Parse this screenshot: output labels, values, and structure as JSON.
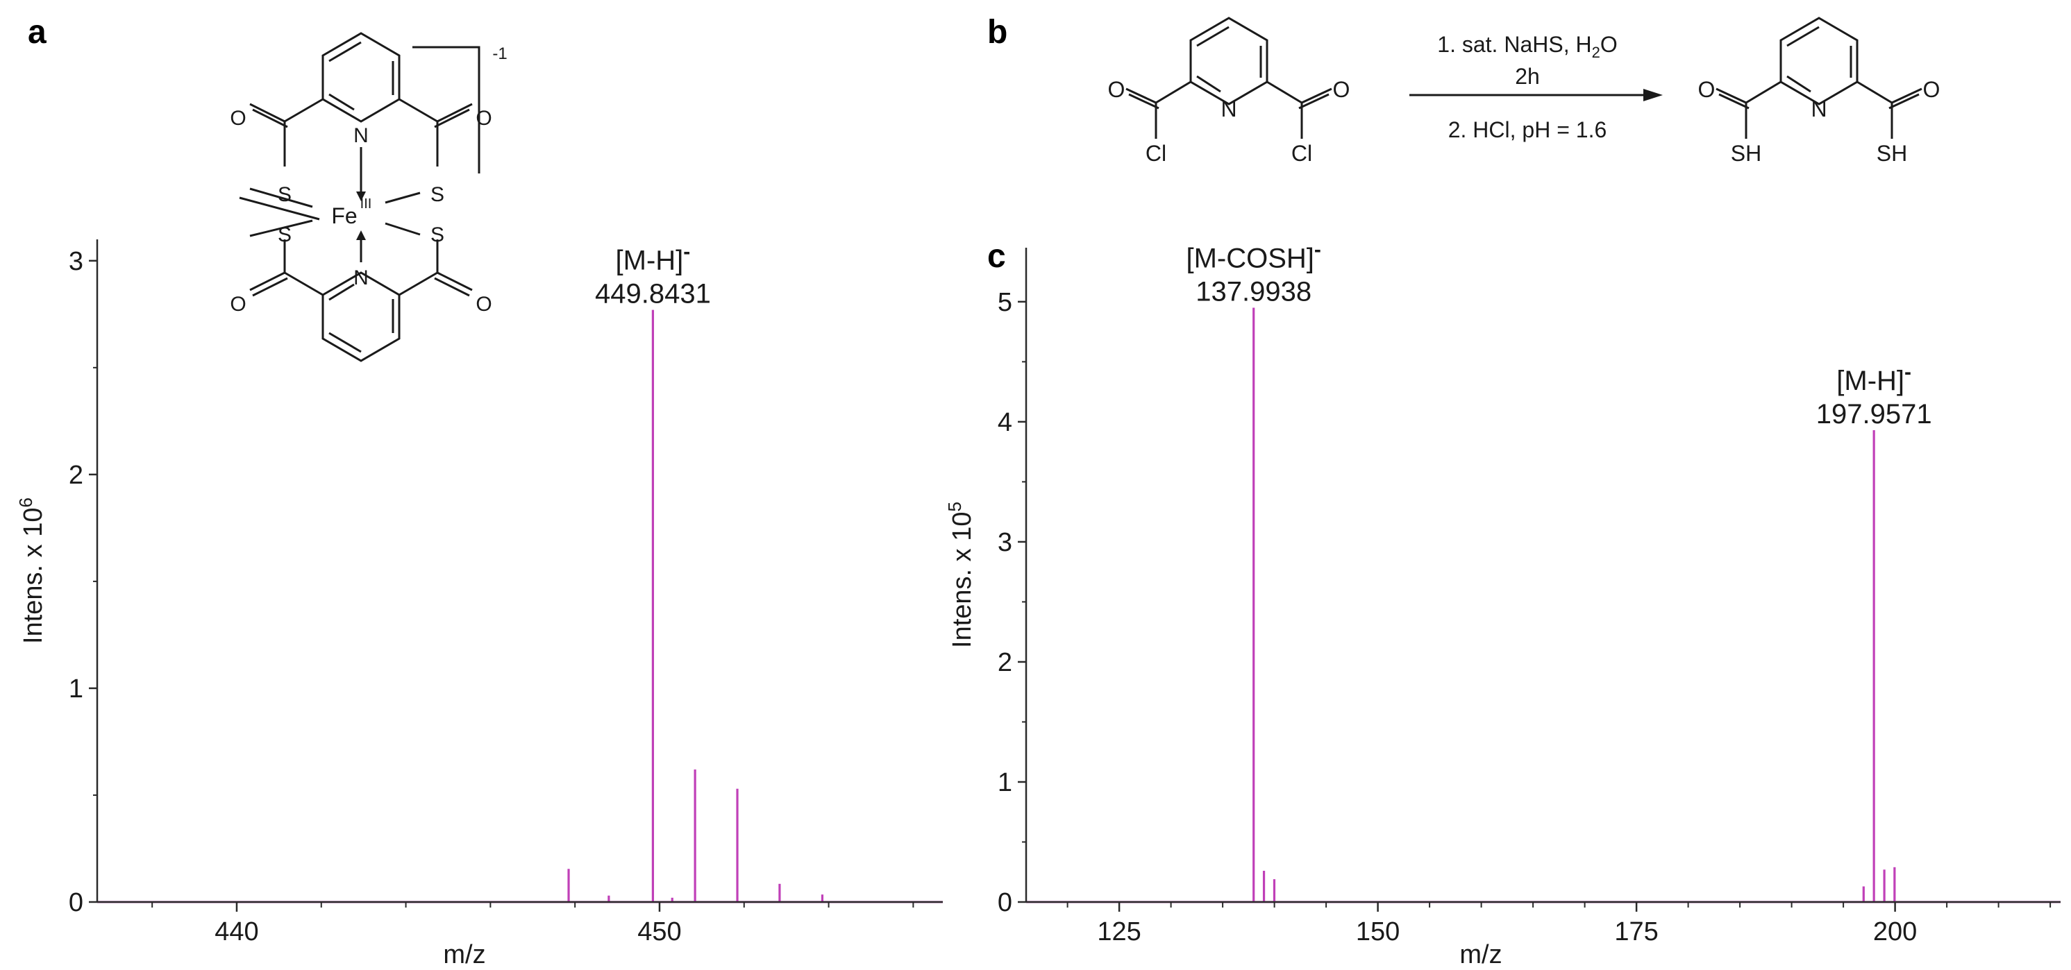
{
  "panel_labels": {
    "a": "a",
    "b": "b",
    "c": "c"
  },
  "colors": {
    "spectrum": "#c040b8",
    "axis": "#2a2a2a",
    "text": "#1a1a1a"
  },
  "structure_a": {
    "charge": "-1",
    "metal": "Fe",
    "oxidation_state": "III",
    "atom_N": "N",
    "atom_S": "S",
    "atom_O": "O"
  },
  "reaction_b": {
    "step1": "1. sat. NaHS, H",
    "step1_sub": "2",
    "step1_end": "O",
    "step1_time": "2h",
    "step2": "2. HCl, pH = 1.6",
    "reactant_groups": [
      "Cl",
      "Cl"
    ],
    "product_groups": [
      "SH",
      "SH"
    ],
    "atom_N": "N",
    "atom_O": "O"
  },
  "chart_data": [
    {
      "panel": "a",
      "type": "line",
      "xlabel": "m/z",
      "ylabel": "Intens. x 10",
      "ylabel_exp": "6",
      "xlim": [
        436.7,
        456.7
      ],
      "ylim": [
        0,
        3.1
      ],
      "xticks": [
        440,
        450
      ],
      "yticks": [
        0,
        1,
        2,
        3
      ],
      "x_minor_step": 2,
      "peaks": [
        {
          "x": 447.85,
          "y": 0.155
        },
        {
          "x": 448.8,
          "y": 0.03
        },
        {
          "x": 449.8431,
          "y": 2.77
        },
        {
          "x": 450.3,
          "y": 0.02
        },
        {
          "x": 450.84,
          "y": 0.62
        },
        {
          "x": 451.84,
          "y": 0.53
        },
        {
          "x": 452.84,
          "y": 0.085
        },
        {
          "x": 453.85,
          "y": 0.035
        }
      ],
      "annotations": [
        {
          "x": 449.8431,
          "y": 2.77,
          "ion": "[M-H]",
          "charge": "-",
          "value": "449.8431"
        }
      ]
    },
    {
      "panel": "c",
      "type": "line",
      "xlabel": "m/z",
      "ylabel": "Intens. x 10",
      "ylabel_exp": "5",
      "xlim": [
        116,
        216
      ],
      "ylim": [
        0,
        5.45
      ],
      "xticks": [
        125,
        150,
        175,
        200
      ],
      "yticks": [
        0,
        1,
        2,
        3,
        4,
        5
      ],
      "x_minor_step": 5,
      "peaks": [
        {
          "x": 137.9938,
          "y": 4.95
        },
        {
          "x": 138.99,
          "y": 0.26
        },
        {
          "x": 139.99,
          "y": 0.19
        },
        {
          "x": 196.96,
          "y": 0.13
        },
        {
          "x": 197.9571,
          "y": 3.93
        },
        {
          "x": 198.96,
          "y": 0.27
        },
        {
          "x": 199.95,
          "y": 0.29
        }
      ],
      "annotations": [
        {
          "x": 137.9938,
          "y": 4.95,
          "ion": "[M-COSH]",
          "charge": "-",
          "value": "137.9938"
        },
        {
          "x": 197.9571,
          "y": 3.93,
          "ion": "[M-H]",
          "charge": "-",
          "value": "197.9571"
        }
      ]
    }
  ]
}
